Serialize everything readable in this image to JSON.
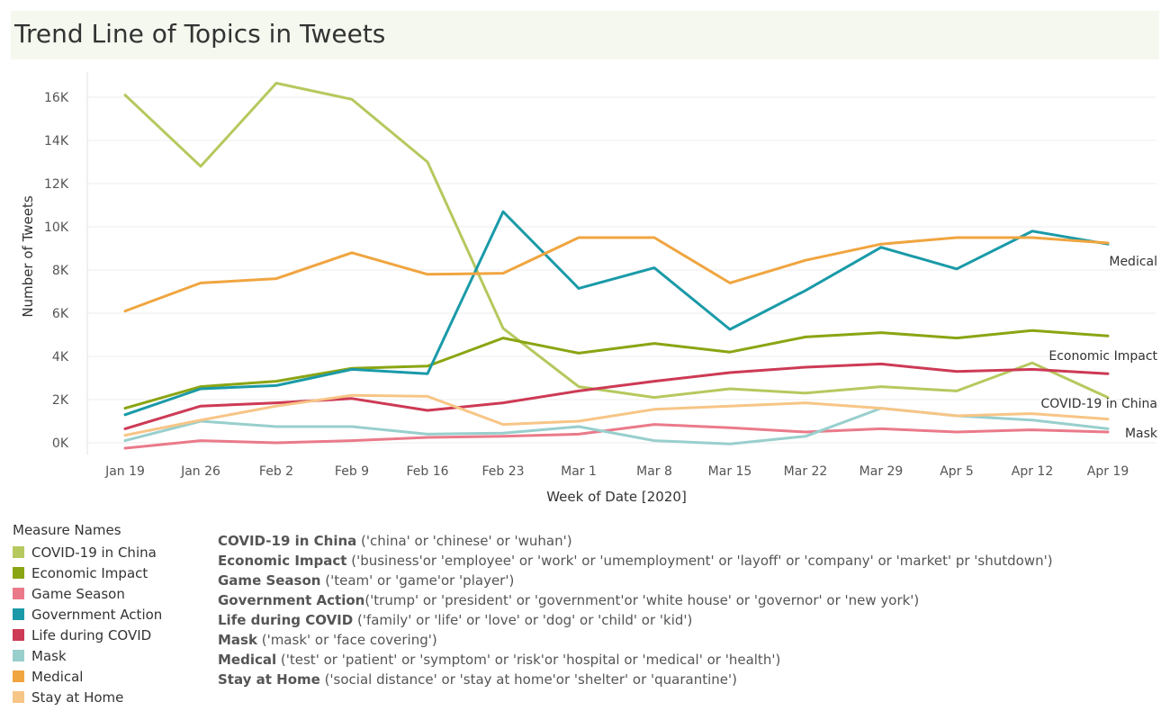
{
  "title": "Trend Line of Topics in Tweets",
  "legend_title": "Measure Names",
  "definitions": [
    {
      "name": "COVID-19 in China",
      "terms": " ('china' or 'chinese' or 'wuhan')"
    },
    {
      "name": "Economic Impact",
      "terms": " ('business'or 'employee' or 'work' or 'umemployment' or 'layoff'  or 'company' or 'market' pr 'shutdown')"
    },
    {
      "name": "Game Season",
      "terms": " ('team' or 'game'or 'player')"
    },
    {
      "name": "Government Action",
      "terms": "('trump' or 'president' or 'government'or 'white house' or 'governor' or 'new york')"
    },
    {
      "name": "Life during COVID",
      "terms": " ('family' or 'life'  or 'love' or 'dog' or 'child' or 'kid')"
    },
    {
      "name": "Mask",
      "terms": " ('mask' or 'face covering')"
    },
    {
      "name": "Medical",
      "terms": " ('test'  or 'patient' or 'symptom' or 'risk'or 'hospital or 'medical' or 'health')"
    },
    {
      "name": "Stay at Home",
      "terms": " ('social distance' or 'stay at home'or 'shelter' or 'quarantine')"
    }
  ],
  "chart_data": {
    "type": "line",
    "title": "Trend Line of Topics in Tweets",
    "xlabel": "Week of Date [2020]",
    "ylabel": "Number of Tweets",
    "ylim": [
      -500,
      17000
    ],
    "yticks": [
      0,
      2000,
      4000,
      6000,
      8000,
      10000,
      12000,
      14000,
      16000
    ],
    "ytick_labels": [
      "0K",
      "2K",
      "4K",
      "6K",
      "8K",
      "10K",
      "12K",
      "14K",
      "16K"
    ],
    "categories": [
      "Jan 19",
      "Jan 26",
      "Feb 2",
      "Feb 9",
      "Feb 16",
      "Feb 23",
      "Mar 1",
      "Mar 8",
      "Mar 15",
      "Mar 22",
      "Mar 29",
      "Apr 5",
      "Apr 12",
      "Apr 19"
    ],
    "series": [
      {
        "name": "COVID-19 in China",
        "color": "#b5c95e",
        "values": [
          16100,
          12800,
          16650,
          15900,
          13000,
          5300,
          2600,
          2100,
          2500,
          2300,
          2600,
          2400,
          3700,
          2100
        ],
        "end_label": "COVID-19 in China"
      },
      {
        "name": "Economic Impact",
        "color": "#8aa513",
        "values": [
          1600,
          2600,
          2850,
          3450,
          3550,
          4850,
          4150,
          4600,
          4200,
          4900,
          5100,
          4850,
          5200,
          4950
        ],
        "end_label": "Economic Impact"
      },
      {
        "name": "Game Season",
        "color": "#ea7a8a",
        "values": [
          -250,
          100,
          0,
          100,
          250,
          300,
          400,
          850,
          700,
          500,
          650,
          500,
          600,
          500
        ],
        "end_label": ""
      },
      {
        "name": "Government Action",
        "color": "#1a9aa8",
        "values": [
          1300,
          2500,
          2650,
          3400,
          3200,
          10700,
          7150,
          8100,
          5250,
          7050,
          9050,
          8050,
          9800,
          9200
        ],
        "end_label": ""
      },
      {
        "name": "Life during COVID",
        "color": "#cd3a55",
        "values": [
          650,
          1700,
          1850,
          2050,
          1500,
          1850,
          2400,
          2850,
          3250,
          3500,
          3650,
          3300,
          3400,
          3200
        ],
        "end_label": ""
      },
      {
        "name": "Mask",
        "color": "#98cfcd",
        "values": [
          100,
          1000,
          750,
          750,
          400,
          450,
          750,
          100,
          -50,
          300,
          1600,
          1250,
          1050,
          650
        ],
        "end_label": "Mask"
      },
      {
        "name": "Medical",
        "color": "#f0a540",
        "values": [
          6100,
          7400,
          7600,
          8800,
          7800,
          7850,
          9500,
          9500,
          7400,
          8450,
          9200,
          9500,
          9500,
          9250
        ],
        "end_label": "Medical"
      },
      {
        "name": "Stay at Home",
        "color": "#f7c586",
        "values": [
          350,
          1050,
          1700,
          2200,
          2150,
          850,
          1000,
          1550,
          1700,
          1850,
          1600,
          1250,
          1350,
          1100
        ],
        "end_label": ""
      }
    ]
  }
}
